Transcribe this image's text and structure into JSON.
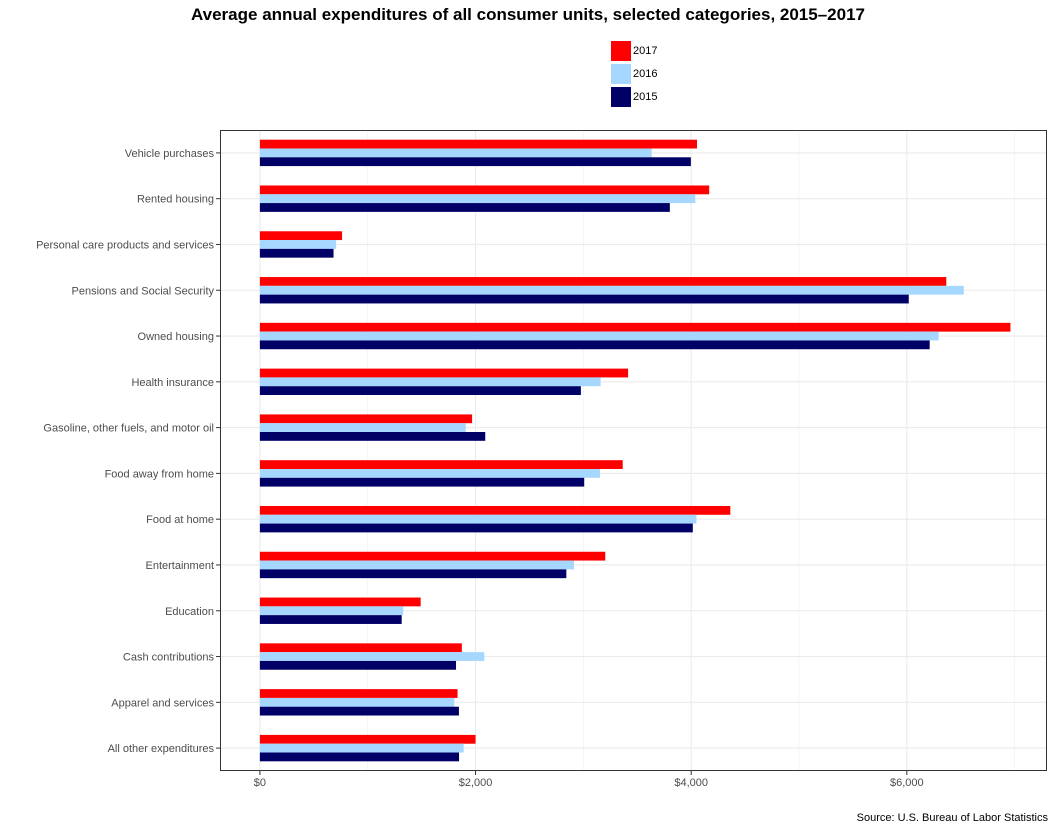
{
  "chart_data": {
    "type": "bar",
    "orientation": "horizontal",
    "title": "Average annual expenditures of all consumer units, selected categories, 2015–2017",
    "source": "Source: U.S. Bureau of Labor Statistics",
    "categories": [
      "Vehicle purchases",
      "Rented housing",
      "Personal care products and services",
      "Pensions and Social Security",
      "Owned housing",
      "Health insurance",
      "Gasoline, other fuels, and motor oil",
      "Food away from home",
      "Food at home",
      "Entertainment",
      "Education",
      "Cash contributions",
      "Apparel and services",
      "All other expenditures"
    ],
    "series": [
      {
        "name": "2017",
        "color": "#ff0000",
        "values": [
          4054,
          4167,
          762,
          6366,
          6961,
          3415,
          1968,
          3365,
          4363,
          3203,
          1491,
          1873,
          1833,
          2000
        ]
      },
      {
        "name": "2016",
        "color": "#a6d8ff",
        "values": [
          3634,
          4038,
          707,
          6528,
          6295,
          3160,
          1909,
          3154,
          4049,
          2913,
          1329,
          2081,
          1803,
          1890
        ]
      },
      {
        "name": "2015",
        "color": "#000066",
        "values": [
          3997,
          3802,
          683,
          6018,
          6212,
          2977,
          2090,
          3008,
          4015,
          2842,
          1315,
          1819,
          1846,
          1847
        ]
      }
    ],
    "legend_order": [
      "2017",
      "2016",
      "2015"
    ],
    "xlim": [
      -370,
      7300
    ],
    "xticks": [
      0,
      2000,
      4000,
      6000
    ],
    "xtick_labels": [
      "$0",
      "$2,000",
      "$4,000",
      "$6,000"
    ],
    "grid": true,
    "legend_position": "top"
  }
}
